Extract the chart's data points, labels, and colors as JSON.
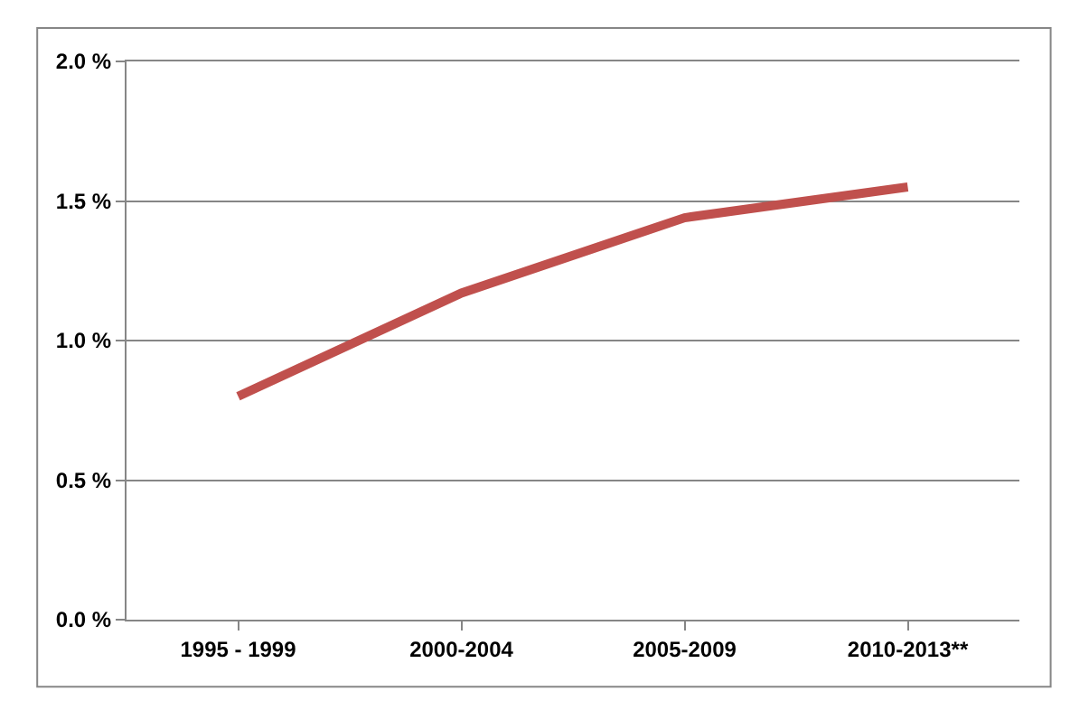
{
  "chart_data": {
    "type": "line",
    "categories": [
      "1995 - 1999",
      "2000-2004",
      "2005-2009",
      "2010-2013**"
    ],
    "series": [
      {
        "color": "#c0504d",
        "values": [
          0.8,
          1.17,
          1.44,
          1.55
        ]
      }
    ],
    "ylim": [
      0,
      2
    ],
    "yticks": [
      {
        "value": 0,
        "label": "0.0 %"
      },
      {
        "value": 0.5,
        "label": "0.5 %"
      },
      {
        "value": 1,
        "label": "1.0 %"
      },
      {
        "value": 1.5,
        "label": "1.5 %"
      },
      {
        "value": 2,
        "label": "2.0 %"
      }
    ],
    "grid": "y",
    "marker": "none",
    "line_style": "solid"
  }
}
